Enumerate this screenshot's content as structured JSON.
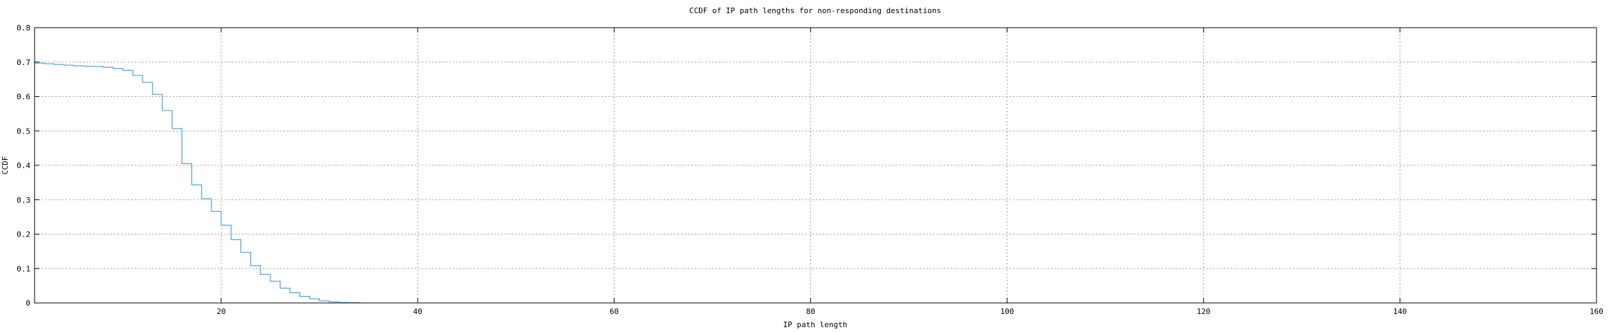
{
  "chart_data": {
    "type": "line",
    "line_style": "steps-post",
    "title": "CCDF of IP path lengths for non-responding destinations",
    "xlabel": "IP path length",
    "ylabel": "CCDF",
    "xlim": [
      1,
      160
    ],
    "ylim": [
      0,
      0.8
    ],
    "xticks": [
      20,
      40,
      60,
      80,
      100,
      120,
      140,
      160
    ],
    "yticks": [
      0,
      0.1,
      0.2,
      0.3,
      0.4,
      0.5,
      0.6,
      0.7,
      0.8
    ],
    "ytick_labels": [
      "0",
      "0.1",
      "0.2",
      "0.3",
      "0.4",
      "0.5",
      "0.6",
      "0.7",
      "0.8"
    ],
    "grid": true,
    "legend": "none",
    "line_color": "#58a8da",
    "x": [
      1,
      2,
      3,
      4,
      5,
      6,
      7,
      8,
      9,
      10,
      11,
      12,
      13,
      14,
      15,
      16,
      17,
      18,
      19,
      20,
      21,
      22,
      23,
      24,
      25,
      26,
      27,
      28,
      29,
      30,
      31,
      32,
      33,
      34
    ],
    "ccdf": [
      0.697,
      0.695,
      0.693,
      0.691,
      0.689,
      0.688,
      0.687,
      0.685,
      0.681,
      0.676,
      0.661,
      0.641,
      0.606,
      0.559,
      0.507,
      0.405,
      0.343,
      0.303,
      0.266,
      0.226,
      0.184,
      0.147,
      0.108,
      0.083,
      0.063,
      0.043,
      0.03,
      0.019,
      0.012,
      0.006,
      0.003,
      0.0015,
      0.0007,
      0.0002
    ],
    "curve_end_x": 34.2
  },
  "colors": {
    "axis": "#000000",
    "grid": "#9a9a9a",
    "background": "#ffffff",
    "text": "#000000"
  }
}
